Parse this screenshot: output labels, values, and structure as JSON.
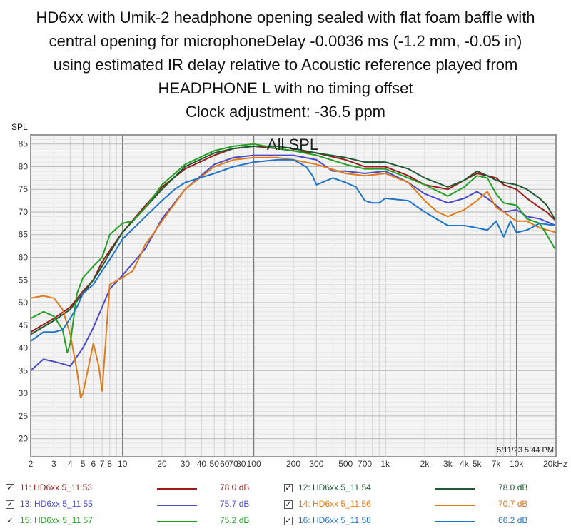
{
  "title_lines": [
    "HD6xx with Umik-2 headphone opening sealed with flat foam baffle with",
    "central opening for microphoneDelay -0.0036 ms (-1.2 mm, -0.05 in)",
    "using estimated IR delay relative to Acoustic reference played from",
    "HEADPHONE L with no timing offset",
    "Clock adjustment: -36.5 ppm"
  ],
  "plot_label": "All SPL",
  "timestamp": "5/11/23 5:44 PM",
  "legend": [
    {
      "name": "11: HD6xx 5_11 53",
      "value": "78.0 dB",
      "color": "#9b1c1c",
      "checked": "✓"
    },
    {
      "name": "12: HD6xx 5_11 54",
      "value": "78.0 dB",
      "color": "#1f5a32",
      "checked": "✓"
    },
    {
      "name": "13: HD6xx 5_11 55",
      "value": "75.7 dB",
      "color": "#4b4bc8",
      "checked": "✓"
    },
    {
      "name": "14: HD6xx 5_11 56",
      "value": "70.7 dB",
      "color": "#e07b1a",
      "checked": "✓"
    },
    {
      "name": "15: HD6xx 5_11 57",
      "value": "75.2 dB",
      "color": "#22a022",
      "checked": "✓"
    },
    {
      "name": "16: HD6xx 5_11 58",
      "value": "66.2 dB",
      "color": "#1e74c8",
      "checked": "✓"
    }
  ],
  "chart_data": {
    "type": "line",
    "title": "HD6xx with Umik-2 headphone opening sealed with flat foam baffle with central opening for microphoneDelay -0.0036 ms (-1.2 mm, -0.05 in) using estimated IR delay relative to Acoustic reference played from HEADPHONE L with no timing offset Clock adjustment: -36.5 ppm",
    "ylabel": "SPL",
    "xlabel": "",
    "x_scale": "log",
    "xlim": [
      2,
      20000
    ],
    "ylim": [
      16,
      87
    ],
    "grid": true,
    "x_tick_labels": [
      "2",
      "3",
      "4",
      "5",
      "6",
      "7",
      "8",
      "10",
      "20",
      "30",
      "40",
      "50",
      "60",
      "70",
      "80",
      "100",
      "200",
      "300",
      "500",
      "700",
      "1k",
      "2k",
      "3k",
      "4k",
      "5k",
      "7k",
      "10k",
      "20kHz"
    ],
    "x_tick_values": [
      2,
      3,
      4,
      5,
      6,
      7,
      8,
      10,
      20,
      30,
      40,
      50,
      60,
      70,
      80,
      100,
      200,
      300,
      500,
      700,
      1000,
      2000,
      3000,
      4000,
      5000,
      7000,
      10000,
      20000
    ],
    "y_ticks": [
      20,
      25,
      30,
      35,
      40,
      45,
      50,
      55,
      60,
      65,
      70,
      75,
      80,
      85
    ],
    "series": [
      {
        "name": "11: HD6xx 5_11 53",
        "color": "#9b1c1c",
        "x": [
          2,
          3,
          4,
          5,
          6,
          7,
          8,
          10,
          15,
          20,
          30,
          50,
          70,
          100,
          150,
          200,
          300,
          500,
          700,
          1000,
          1500,
          2000,
          3000,
          4000,
          5000,
          6000,
          7000,
          8000,
          10000,
          12000,
          15000,
          17000,
          20000
        ],
        "y": [
          43.5,
          46.5,
          49,
          52.5,
          55,
          59,
          61.5,
          65.5,
          71.5,
          75.5,
          79.5,
          82.5,
          84,
          84.5,
          84,
          83.5,
          83,
          81.5,
          80,
          80,
          78,
          76,
          75,
          77,
          78.5,
          78,
          77.5,
          76,
          75,
          73,
          71,
          70,
          68
        ]
      },
      {
        "name": "12: HD6xx 5_11 54",
        "color": "#1f5a32",
        "x": [
          2,
          3,
          4,
          5,
          6,
          7,
          8,
          10,
          15,
          20,
          30,
          50,
          70,
          100,
          150,
          200,
          300,
          500,
          700,
          1000,
          1500,
          2000,
          3000,
          4000,
          5000,
          6000,
          7000,
          8000,
          10000,
          12000,
          15000,
          17000,
          20000
        ],
        "y": [
          43,
          46,
          48.5,
          52,
          55,
          58,
          61,
          65.5,
          71,
          75,
          80,
          83,
          84,
          84.5,
          84.5,
          84,
          83,
          82,
          81,
          81,
          79.5,
          77.5,
          75.5,
          77,
          79,
          78,
          77,
          76.5,
          76,
          75,
          73,
          71.5,
          68
        ]
      },
      {
        "name": "13: HD6xx 5_11 55",
        "color": "#4b4bc8",
        "x": [
          2,
          2.5,
          3,
          3.5,
          4,
          5,
          6,
          7,
          8,
          10,
          15,
          20,
          30,
          50,
          70,
          100,
          150,
          200,
          300,
          400,
          500,
          700,
          1000,
          1500,
          2000,
          3000,
          4000,
          5000,
          6000,
          7000,
          8000,
          10000,
          12000,
          15000,
          20000
        ],
        "y": [
          35,
          37.5,
          37,
          36.5,
          36,
          40,
          44.5,
          49,
          53,
          56,
          62,
          68.5,
          75,
          80.5,
          82,
          82.5,
          82.5,
          82.5,
          81.5,
          79,
          79,
          78.5,
          79,
          76.5,
          74,
          72,
          73,
          74.5,
          73,
          71.5,
          70,
          70.5,
          69,
          68.5,
          67
        ]
      },
      {
        "name": "14: HD6xx 5_11 56",
        "color": "#e07b1a",
        "x": [
          2,
          2.5,
          3,
          3.5,
          4,
          4.5,
          4.8,
          5,
          6,
          6.6,
          7,
          8,
          10,
          12,
          14,
          15,
          17,
          20,
          30,
          50,
          70,
          100,
          150,
          200,
          300,
          500,
          700,
          1000,
          1500,
          2000,
          2500,
          3000,
          4000,
          5000,
          6000,
          7000,
          8000,
          10000,
          12000,
          15000,
          20000
        ],
        "y": [
          51,
          51.5,
          51,
          48.5,
          43,
          35,
          29,
          30,
          41,
          36,
          30.5,
          54,
          55.5,
          57,
          61,
          63,
          65,
          68,
          75,
          80,
          81.5,
          82,
          82,
          81.5,
          80.5,
          78.5,
          78,
          78.5,
          76.5,
          72.5,
          70,
          69,
          70.5,
          72.5,
          74.5,
          71,
          70,
          68,
          68,
          66.5,
          65.5
        ]
      },
      {
        "name": "15: HD6xx 5_11 57",
        "color": "#22a022",
        "x": [
          2,
          2.5,
          3,
          3.5,
          3.8,
          4,
          4.5,
          5,
          6,
          7,
          8,
          10,
          12,
          15,
          20,
          30,
          50,
          70,
          100,
          150,
          200,
          300,
          500,
          700,
          1000,
          1500,
          2000,
          3000,
          4000,
          5000,
          6000,
          7000,
          8000,
          10000,
          12000,
          15000,
          17000,
          20000
        ],
        "y": [
          46.5,
          48,
          47,
          44,
          39,
          41,
          52,
          55.5,
          58,
          60,
          65,
          67.5,
          68,
          71,
          76,
          80.5,
          83.5,
          84.5,
          85,
          84,
          83.5,
          82.5,
          80.5,
          79.5,
          79.5,
          77.5,
          76,
          73.5,
          75.5,
          78,
          77.5,
          74,
          72,
          71.5,
          68.5,
          67.5,
          65,
          61.5
        ]
      },
      {
        "name": "16: HD6xx 5_11 58",
        "color": "#1e74c8",
        "x": [
          2,
          2.5,
          3,
          3.5,
          4,
          4.5,
          5,
          6,
          7,
          8,
          10,
          15,
          20,
          25,
          30,
          50,
          70,
          100,
          150,
          200,
          250,
          280,
          300,
          400,
          500,
          600,
          700,
          800,
          900,
          1000,
          1500,
          2000,
          3000,
          4000,
          5000,
          6000,
          7000,
          8000,
          9000,
          10000,
          12000,
          15000,
          20000
        ],
        "y": [
          41.5,
          43.5,
          43.5,
          44,
          46.5,
          49,
          52,
          54,
          57,
          59.5,
          64,
          69,
          72.5,
          75,
          76.5,
          78.5,
          80,
          81,
          81.5,
          81.5,
          80,
          78,
          76,
          77.5,
          76.5,
          75.5,
          72.5,
          72,
          72,
          73,
          72.5,
          70,
          67,
          67,
          66.5,
          66,
          68,
          64.5,
          68,
          65.5,
          66,
          67.5,
          67
        ]
      }
    ]
  }
}
